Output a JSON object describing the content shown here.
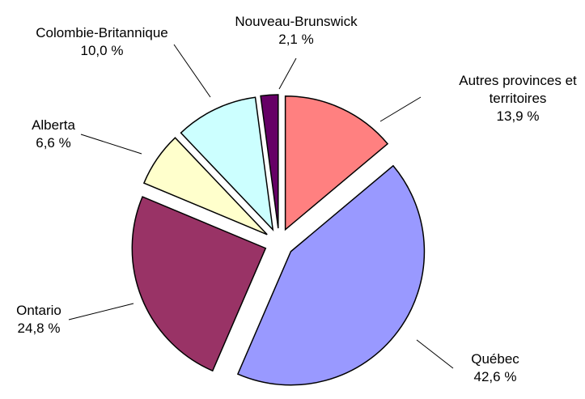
{
  "chart_data": {
    "type": "pie",
    "categories": [
      "Autres provinces et territoires",
      "Québec",
      "Ontario",
      "Alberta",
      "Colombie-Britannique",
      "Nouveau-Brunswick"
    ],
    "values": [
      13.9,
      42.6,
      24.8,
      6.6,
      10.0,
      2.1
    ],
    "value_labels": [
      "13,9 %",
      "42,6 %",
      "24,8 %",
      "6,6 %",
      "10,0 %",
      "2,1 %"
    ],
    "colors": [
      "#ff8080",
      "#9999ff",
      "#993366",
      "#ffffcc",
      "#ccffff",
      "#660066"
    ]
  }
}
